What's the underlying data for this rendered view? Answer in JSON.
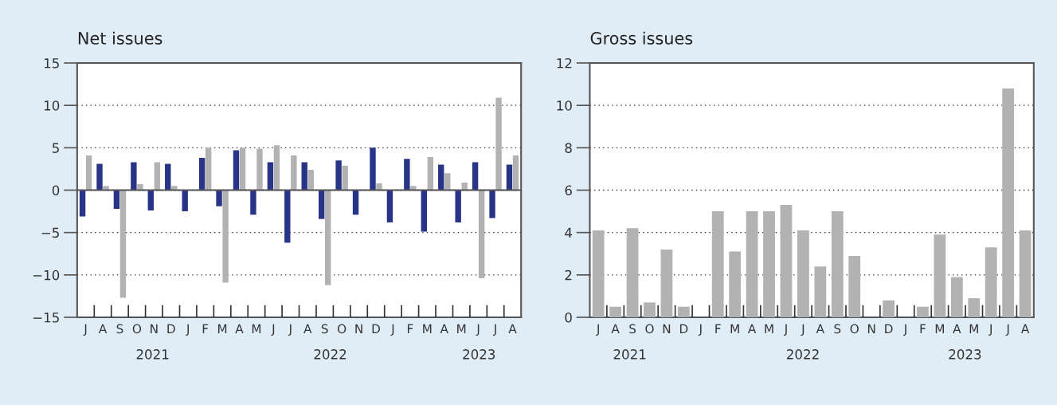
{
  "chart_data": [
    {
      "type": "bar",
      "title": "Net issues",
      "categories": [
        "J",
        "A",
        "S",
        "O",
        "N",
        "D",
        "J",
        "F",
        "M",
        "A",
        "M",
        "J",
        "J",
        "A",
        "S",
        "O",
        "N",
        "D",
        "J",
        "F",
        "M",
        "A",
        "M",
        "J",
        "J",
        "A"
      ],
      "series": [
        {
          "color": "#283488",
          "values": [
            -3.1,
            3.1,
            -2.2,
            3.3,
            -2.4,
            3.1,
            -2.5,
            3.8,
            -1.9,
            4.7,
            -2.9,
            3.3,
            -6.2,
            3.3,
            -3.4,
            3.5,
            -2.9,
            5.0,
            -3.8,
            3.7,
            -4.9,
            3.0,
            -3.8,
            3.3,
            -3.3,
            3.0
          ]
        },
        {
          "color": "#b2b2b2",
          "values": [
            4.1,
            0.5,
            -12.7,
            0.7,
            3.3,
            0.5,
            0,
            5.0,
            -10.9,
            5.0,
            4.9,
            5.3,
            4.1,
            2.4,
            -11.2,
            2.9,
            0,
            0.8,
            0,
            0.5,
            3.9,
            2.0,
            0.9,
            -10.4,
            10.9,
            4.1
          ]
        }
      ],
      "ylim": [
        -15,
        15
      ],
      "yticks": [
        {
          "value": -15,
          "label": "−15"
        },
        {
          "value": -10,
          "label": "−10"
        },
        {
          "value": -5,
          "label": "−5"
        },
        0,
        5,
        10,
        15
      ],
      "grid": "y",
      "annotations": [
        "2021",
        "2022",
        "2023"
      ]
    },
    {
      "type": "bar",
      "title": "Gross issues",
      "categories": [
        "J",
        "A",
        "S",
        "O",
        "N",
        "D",
        "J",
        "F",
        "M",
        "A",
        "M",
        "J",
        "J",
        "A",
        "S",
        "O",
        "N",
        "D",
        "J",
        "F",
        "M",
        "A",
        "M",
        "J",
        "J",
        "A"
      ],
      "series": [
        {
          "color": "#b2b2b2",
          "values": [
            4.1,
            0.5,
            4.2,
            0.7,
            3.2,
            0.5,
            0,
            5.0,
            3.1,
            5.0,
            5.0,
            5.3,
            4.1,
            2.4,
            5.0,
            2.9,
            0,
            0.8,
            0,
            0.5,
            3.9,
            1.9,
            0.9,
            3.3,
            10.8,
            4.1
          ]
        }
      ],
      "ylim": [
        0,
        12
      ],
      "yticks": [
        0,
        2,
        4,
        6,
        8,
        10,
        12
      ],
      "grid": "y",
      "annotations": [
        "2021",
        "2022",
        "2023"
      ]
    }
  ]
}
